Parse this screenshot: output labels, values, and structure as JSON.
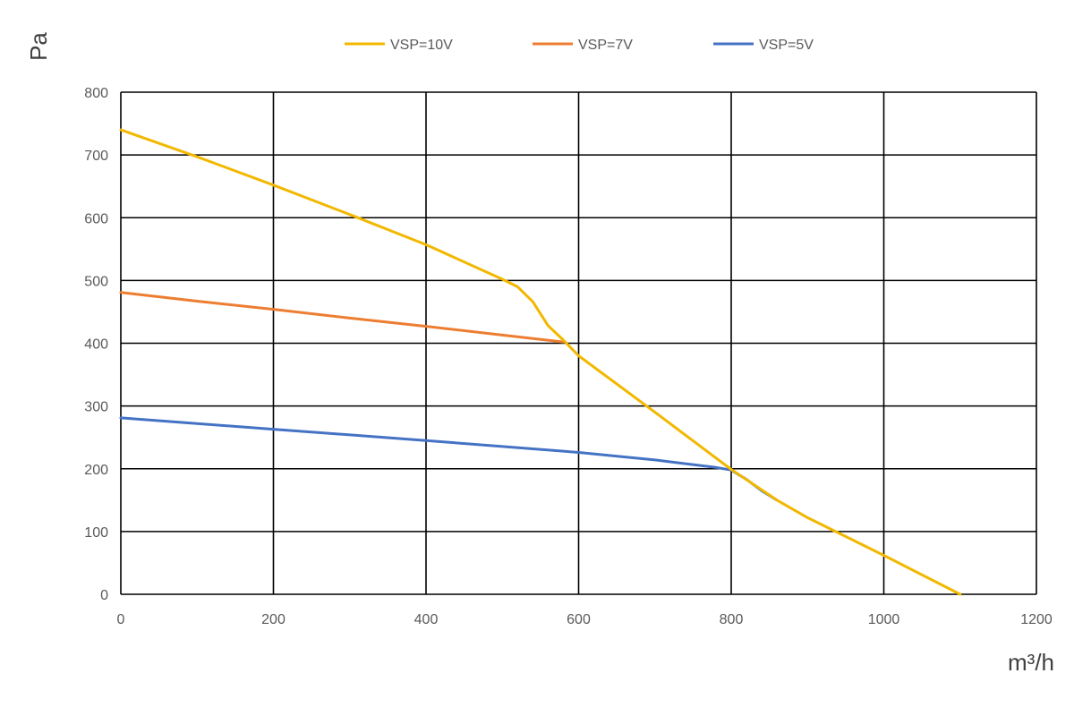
{
  "chart_data": {
    "type": "line",
    "title": "",
    "xlabel": "m³/h",
    "ylabel": "Pa",
    "xlim": [
      0,
      1200
    ],
    "ylim": [
      0,
      800
    ],
    "x_ticks": [
      "0",
      "200",
      "400",
      "600",
      "800",
      "1000",
      "1200"
    ],
    "y_ticks": [
      "0",
      "100",
      "200",
      "300",
      "400",
      "500",
      "600",
      "700",
      "800"
    ],
    "grid": true,
    "legend_position": "top",
    "series": [
      {
        "name": "VSP=10V",
        "color": "#F2B800",
        "points": [
          [
            0,
            740
          ],
          [
            100,
            697
          ],
          [
            200,
            652
          ],
          [
            300,
            605
          ],
          [
            400,
            557
          ],
          [
            500,
            502
          ],
          [
            520,
            490
          ],
          [
            540,
            466
          ],
          [
            560,
            428
          ],
          [
            580,
            405
          ],
          [
            600,
            380
          ],
          [
            700,
            290
          ],
          [
            800,
            199
          ],
          [
            860,
            150
          ],
          [
            900,
            122
          ],
          [
            1000,
            62
          ],
          [
            1100,
            0
          ]
        ]
      },
      {
        "name": "VSP=7V",
        "color": "#ED7D31",
        "points": [
          [
            0,
            481
          ],
          [
            100,
            467
          ],
          [
            200,
            454
          ],
          [
            300,
            440
          ],
          [
            400,
            427
          ],
          [
            500,
            413
          ],
          [
            580,
            402
          ]
        ]
      },
      {
        "name": "VSP=5V",
        "color": "#4472C4",
        "points": [
          [
            0,
            281
          ],
          [
            200,
            263
          ],
          [
            400,
            245
          ],
          [
            600,
            226
          ],
          [
            700,
            214
          ],
          [
            780,
            202
          ],
          [
            800,
            198
          ],
          [
            820,
            183
          ],
          [
            840,
            165
          ],
          [
            860,
            150
          ]
        ]
      }
    ]
  }
}
